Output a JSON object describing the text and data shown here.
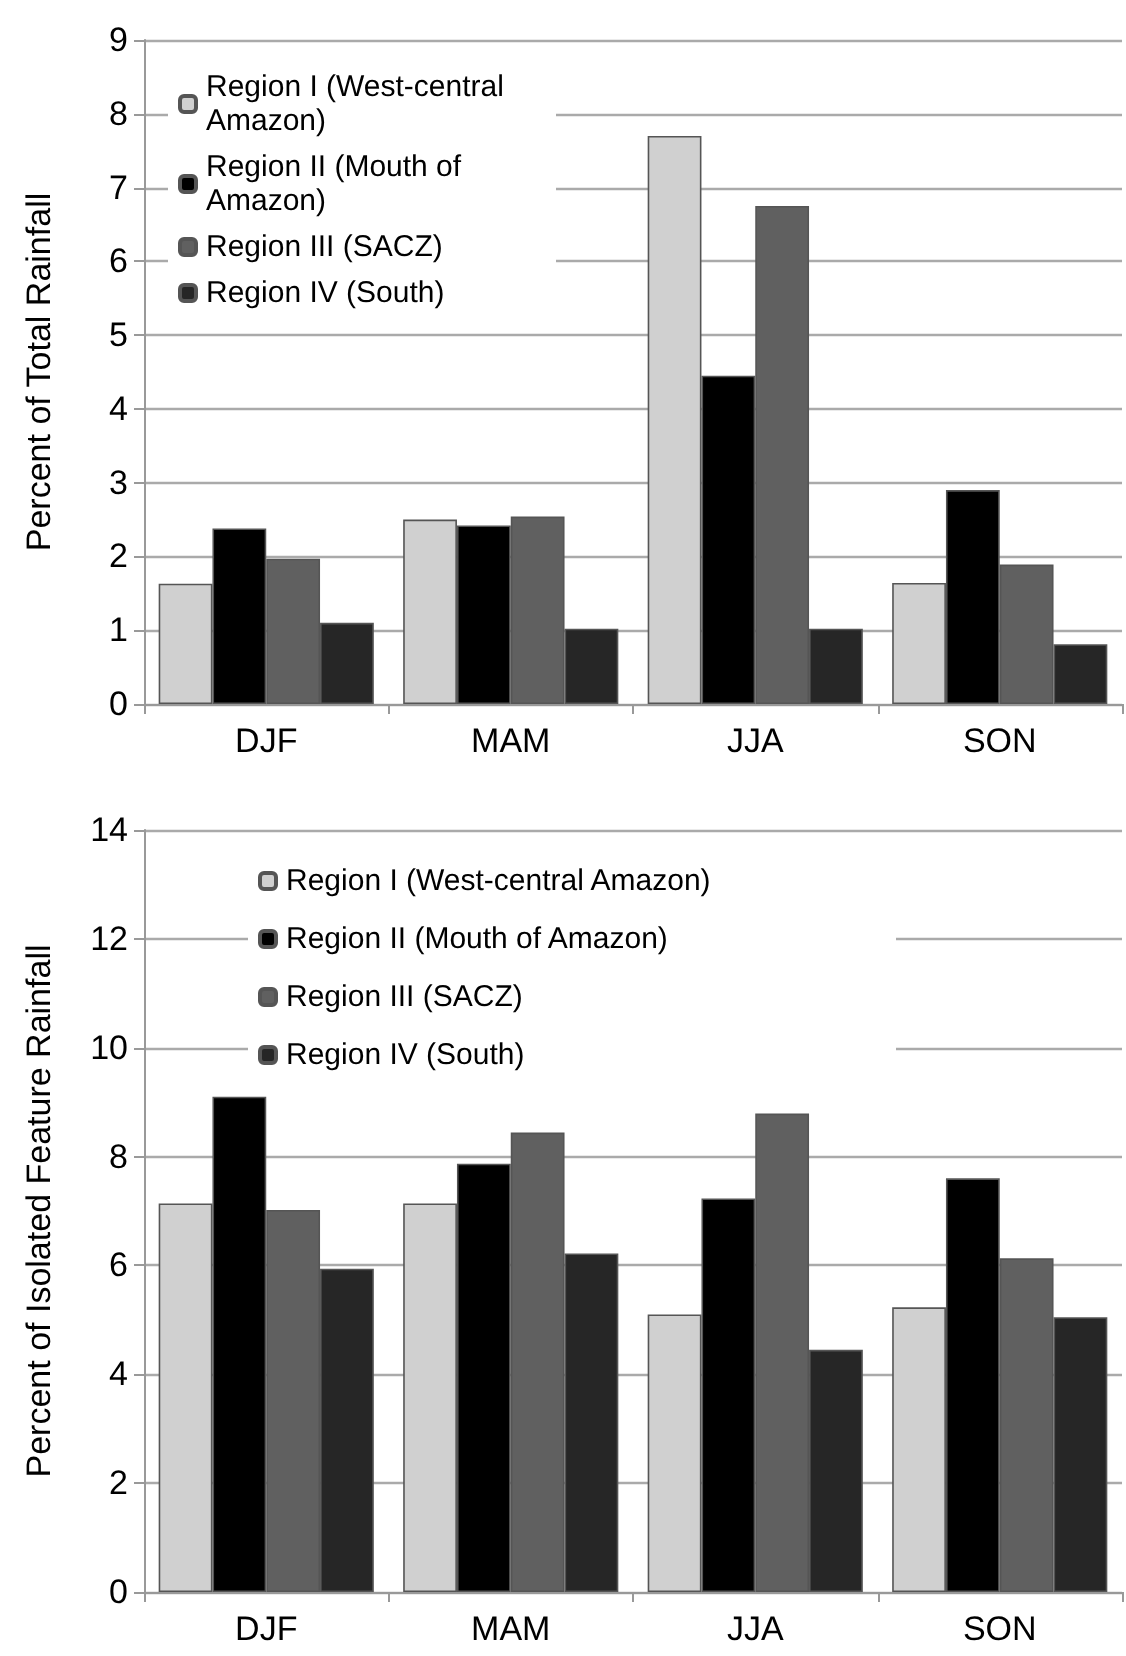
{
  "chart_data": [
    {
      "type": "bar",
      "ylabel": "Percent of Total Rainfall",
      "categories": [
        "DJF",
        "MAM",
        "JJA",
        "SON"
      ],
      "series": [
        {
          "name": "Region I (West-central Amazon)",
          "color": "#d0d0d0",
          "values": [
            1.63,
            2.5,
            7.7,
            1.64
          ]
        },
        {
          "name": "Region II (Mouth of Amazon)",
          "color": "#000000",
          "values": [
            2.38,
            2.42,
            4.45,
            2.9
          ]
        },
        {
          "name": "Region III (SACZ)",
          "color": "#606060",
          "values": [
            1.97,
            2.54,
            6.75,
            1.89
          ]
        },
        {
          "name": "Region IV (South)",
          "color": "#262626",
          "values": [
            1.1,
            1.02,
            1.02,
            0.81
          ]
        }
      ],
      "ylim": [
        0,
        9
      ],
      "yticks": [
        0,
        1,
        2,
        3,
        4,
        5,
        6,
        7,
        8,
        9
      ],
      "grid": "y",
      "legend": "top left"
    },
    {
      "type": "bar",
      "ylabel": "Percent of Isolated Feature Rainfall",
      "categories": [
        "DJF",
        "MAM",
        "JJA",
        "SON"
      ],
      "series": [
        {
          "name": "Region I (West-central Amazon)",
          "color": "#d0d0d0",
          "values": [
            7.14,
            7.14,
            5.1,
            5.23
          ]
        },
        {
          "name": "Region II (Mouth of Amazon)",
          "color": "#000000",
          "values": [
            9.1,
            7.87,
            7.23,
            7.6
          ]
        },
        {
          "name": "Region III (SACZ)",
          "color": "#606060",
          "values": [
            7.02,
            8.44,
            8.79,
            6.13
          ]
        },
        {
          "name": "Region IV (South)",
          "color": "#262626",
          "values": [
            5.94,
            6.22,
            4.45,
            5.05
          ]
        }
      ],
      "ylim": [
        0,
        14
      ],
      "yticks": [
        0,
        2,
        4,
        6,
        8,
        10,
        12,
        14
      ],
      "grid": "y",
      "legend": "top left"
    }
  ]
}
